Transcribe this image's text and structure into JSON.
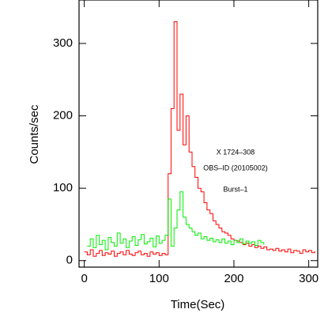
{
  "chart_data": {
    "type": "line",
    "xlabel": "Time(Sec)",
    "ylabel": "Counts/sec",
    "annotations": [
      "X 1724–308",
      "OBS–ID (20105002)",
      "Burst–1"
    ],
    "xlim": [
      -7,
      312
    ],
    "ylim": [
      -9,
      360
    ],
    "xticks": [
      0,
      100,
      200,
      300
    ],
    "yticks": [
      0,
      100,
      200,
      300
    ],
    "series": [
      {
        "color": "#ff0000",
        "x": [
          0,
          4,
          8,
          12,
          16,
          20,
          24,
          28,
          32,
          36,
          40,
          44,
          48,
          52,
          56,
          60,
          64,
          68,
          72,
          76,
          80,
          84,
          88,
          92,
          96,
          100,
          104,
          108,
          112,
          116,
          120,
          124,
          128,
          132,
          136,
          140,
          144,
          148,
          152,
          156,
          160,
          164,
          168,
          172,
          176,
          180,
          184,
          188,
          192,
          196,
          200,
          204,
          208,
          212,
          216,
          220,
          224,
          228,
          232,
          236,
          240,
          244,
          248,
          252,
          256,
          260,
          264,
          268,
          272,
          276,
          280,
          284,
          288,
          292,
          296,
          300,
          304,
          308
        ],
        "values": [
          12,
          8,
          15,
          6,
          10,
          14,
          7,
          11,
          9,
          13,
          6,
          10,
          12,
          8,
          14,
          9,
          7,
          11,
          13,
          8,
          10,
          6,
          12,
          9,
          11,
          7,
          10,
          8,
          120,
          210,
          330,
          180,
          230,
          160,
          200,
          150,
          130,
          115,
          100,
          95,
          80,
          70,
          65,
          55,
          50,
          45,
          40,
          38,
          35,
          30,
          28,
          27,
          25,
          22,
          24,
          20,
          22,
          18,
          20,
          17,
          19,
          15,
          16,
          14,
          17,
          13,
          15,
          12,
          16,
          11,
          14,
          13,
          10,
          15,
          12,
          14,
          11,
          13
        ]
      },
      {
        "color": "#00ee00",
        "x": [
          4,
          8,
          12,
          16,
          20,
          24,
          28,
          32,
          36,
          40,
          44,
          48,
          52,
          56,
          60,
          64,
          68,
          72,
          76,
          80,
          84,
          88,
          92,
          96,
          100,
          104,
          108,
          112,
          116,
          120,
          124,
          128,
          132,
          136,
          140,
          144,
          148,
          152,
          156,
          160,
          164,
          168,
          172,
          176,
          180,
          184,
          188,
          192,
          196,
          200,
          204,
          208,
          212,
          216,
          220,
          224,
          228,
          232,
          236,
          240
        ],
        "values": [
          20,
          30,
          18,
          35,
          22,
          28,
          15,
          32,
          25,
          20,
          38,
          24,
          30,
          18,
          27,
          33,
          21,
          29,
          36,
          23,
          26,
          31,
          19,
          34,
          24,
          28,
          35,
          85,
          20,
          45,
          70,
          95,
          60,
          50,
          45,
          40,
          35,
          38,
          30,
          33,
          28,
          31,
          26,
          29,
          25,
          30,
          24,
          27,
          22,
          28,
          25,
          30,
          23,
          27,
          24,
          26,
          21,
          28,
          25,
          22
        ]
      }
    ]
  }
}
